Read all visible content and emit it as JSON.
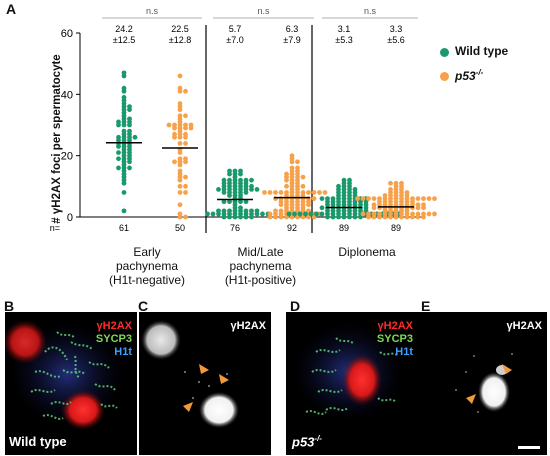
{
  "figure": {
    "panel_a_letter": "A",
    "panel_b_letter": "B",
    "panel_c_letter": "C",
    "panel_d_letter": "D",
    "panel_e_letter": "E"
  },
  "chart_data": {
    "type": "scatter",
    "title": "",
    "ylabel": "# γH2AX foci per spermatocyte",
    "ylim": [
      0,
      60
    ],
    "yticks": [
      "0",
      "20",
      "40",
      "60"
    ],
    "n_prefix": "n=",
    "legend_placement": "right",
    "groups": [
      {
        "label_lines": [
          "Early",
          "pachynema",
          "(H1t-negative)"
        ],
        "series": [
          {
            "name": "Wild type",
            "mean": 24.2,
            "sd": 12.5,
            "mean_label": "24.2",
            "sd_label": "±12.5",
            "n": "61"
          },
          {
            "name": "p53-/-",
            "mean": 22.5,
            "sd": 12.8,
            "mean_label": "22.5",
            "sd_label": "±12.8",
            "n": "50"
          }
        ],
        "significance": "n.s"
      },
      {
        "label_lines": [
          "Mid/Late",
          "pachynema",
          "(H1t-positive)"
        ],
        "series": [
          {
            "name": "Wild type",
            "mean": 5.7,
            "sd": 7.0,
            "mean_label": "5.7",
            "sd_label": "±7.0",
            "n": "76"
          },
          {
            "name": "p53-/-",
            "mean": 6.3,
            "sd": 7.9,
            "mean_label": "6.3",
            "sd_label": "±7.9",
            "n": "92"
          }
        ],
        "significance": "n.s"
      },
      {
        "label_lines": [
          "Diplonema"
        ],
        "series": [
          {
            "name": "Wild type",
            "mean": 3.1,
            "sd": 5.3,
            "mean_label": "3.1",
            "sd_label": "±5.3",
            "n": "89"
          },
          {
            "name": "p53-/-",
            "mean": 3.3,
            "sd": 5.6,
            "mean_label": "3.3",
            "sd_label": "±5.6",
            "n": "89"
          }
        ],
        "significance": "n.s"
      }
    ],
    "legend": [
      {
        "label_main": "Wild type",
        "label_sup": "",
        "color": "#1a9a6c"
      },
      {
        "label_main": "p53",
        "label_sup": "-/-",
        "color": "#f7a24a"
      }
    ]
  },
  "micrographs": {
    "b": {
      "ch1": "γH2AX",
      "ch2": "SYCP3",
      "ch3": "H1t",
      "genotype": "Wild type"
    },
    "c": {
      "ch1": "γH2AX"
    },
    "d": {
      "ch1": "γH2AX",
      "ch2": "SYCP3",
      "ch3": "H1t",
      "genotype_main": "p53",
      "genotype_sup": "-/-"
    },
    "e": {
      "ch1": "γH2AX"
    }
  },
  "colors": {
    "wild_type": "#1a9a6c",
    "p53": "#f7a24a",
    "gh2ax": "#ff2a2a",
    "sycp3": "#7ed957",
    "h1t": "#3aa0ff",
    "arrowhead": "#f29a3a"
  }
}
